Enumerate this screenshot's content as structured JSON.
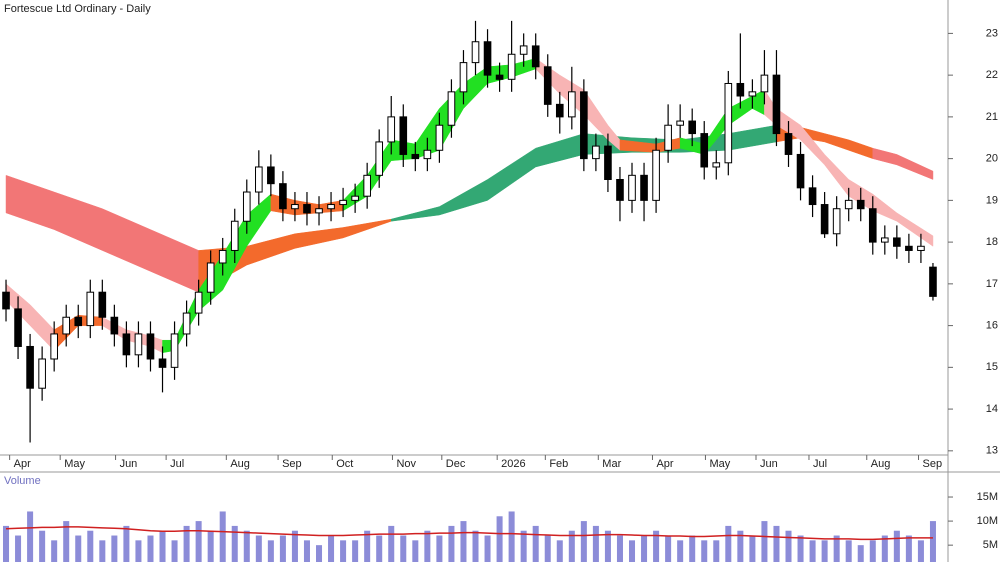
{
  "chart_data": [
    {
      "type": "candlestick",
      "title": "Fortescue Ltd Ordinary - Daily",
      "x": [
        0,
        1,
        2,
        3,
        4,
        5,
        6,
        7,
        8,
        9,
        10,
        11,
        12,
        13,
        14,
        15,
        16,
        17,
        18,
        19,
        20,
        21,
        22,
        23,
        24,
        25,
        26,
        27,
        28,
        29,
        30,
        31,
        32,
        33,
        34,
        35,
        36,
        37,
        38,
        39,
        40,
        41,
        42,
        43,
        44,
        45,
        46,
        47,
        48,
        49,
        50,
        51,
        52,
        53,
        54,
        55,
        56,
        57,
        58,
        59,
        60,
        61,
        62,
        63,
        64,
        65,
        66,
        67,
        68,
        69,
        70,
        71,
        72,
        73,
        74,
        75,
        76,
        77
      ],
      "open": [
        16.8,
        16.4,
        15.5,
        14.5,
        15.2,
        15.8,
        16.2,
        16.0,
        16.8,
        16.2,
        15.8,
        15.3,
        15.8,
        15.2,
        15.0,
        15.8,
        16.3,
        16.8,
        17.5,
        17.8,
        18.5,
        19.2,
        19.8,
        19.4,
        18.8,
        18.9,
        18.7,
        18.8,
        18.9,
        19.0,
        19.1,
        19.6,
        20.4,
        21.0,
        20.1,
        20.0,
        20.2,
        20.8,
        21.6,
        22.3,
        22.8,
        22.0,
        21.9,
        22.5,
        22.7,
        22.2,
        21.3,
        21.0,
        21.6,
        20.0,
        20.3,
        19.5,
        19.0,
        19.6,
        19.0,
        20.2,
        20.8,
        20.9,
        20.6,
        19.8,
        19.9,
        21.8,
        21.5,
        21.6,
        22.0,
        20.6,
        20.1,
        19.3,
        18.9,
        18.2,
        18.8,
        19.0,
        18.8,
        18.0,
        18.1,
        17.9,
        17.8,
        17.4
      ],
      "high": [
        17.1,
        16.7,
        15.8,
        15.5,
        16.1,
        16.5,
        16.5,
        17.1,
        17.1,
        16.5,
        16.1,
        16.1,
        16.1,
        15.5,
        16.1,
        16.6,
        17.1,
        17.8,
        18.1,
        18.8,
        19.5,
        20.2,
        20.1,
        19.7,
        19.2,
        19.2,
        19.1,
        19.2,
        19.3,
        19.4,
        19.9,
        20.7,
        21.5,
        21.3,
        20.4,
        20.5,
        21.1,
        21.9,
        22.6,
        23.3,
        23.1,
        22.3,
        23.3,
        23.0,
        23.0,
        22.5,
        21.6,
        22.2,
        21.9,
        20.6,
        20.6,
        19.8,
        19.9,
        19.9,
        20.5,
        21.3,
        21.3,
        21.2,
        20.9,
        20.2,
        22.1,
        23.0,
        21.9,
        22.6,
        22.6,
        20.9,
        20.4,
        19.6,
        19.2,
        19.1,
        19.3,
        19.3,
        19.1,
        18.4,
        18.4,
        18.2,
        18.2,
        17.5
      ],
      "low": [
        16.1,
        15.2,
        13.2,
        14.2,
        14.9,
        15.5,
        15.7,
        15.7,
        15.9,
        15.5,
        15.0,
        15.0,
        14.9,
        14.4,
        14.7,
        15.5,
        16.0,
        16.5,
        17.2,
        17.5,
        18.2,
        18.9,
        19.1,
        18.5,
        18.5,
        18.4,
        18.4,
        18.5,
        18.6,
        18.7,
        18.8,
        19.3,
        20.1,
        19.8,
        19.7,
        19.7,
        19.9,
        20.5,
        21.3,
        22.0,
        21.7,
        21.6,
        21.6,
        22.2,
        21.9,
        21.0,
        20.6,
        20.7,
        19.7,
        19.7,
        19.2,
        18.5,
        18.7,
        18.5,
        18.7,
        19.9,
        20.5,
        20.3,
        19.5,
        19.5,
        19.6,
        21.2,
        21.2,
        21.3,
        20.3,
        19.8,
        19.0,
        18.6,
        18.1,
        17.9,
        18.5,
        18.5,
        17.7,
        17.7,
        17.6,
        17.5,
        17.5,
        16.6
      ],
      "close": [
        16.4,
        15.5,
        14.5,
        15.2,
        15.8,
        16.2,
        16.0,
        16.8,
        16.2,
        15.8,
        15.3,
        15.8,
        15.2,
        15.0,
        15.8,
        16.3,
        16.8,
        17.5,
        17.8,
        18.5,
        19.2,
        19.8,
        19.4,
        18.8,
        18.9,
        18.7,
        18.8,
        18.9,
        19.0,
        19.1,
        19.6,
        20.4,
        21.0,
        20.1,
        20.0,
        20.2,
        20.8,
        21.6,
        22.3,
        22.8,
        22.0,
        21.9,
        22.5,
        22.7,
        22.2,
        21.3,
        21.0,
        21.6,
        20.0,
        20.3,
        19.5,
        19.0,
        19.6,
        19.0,
        20.2,
        20.8,
        20.9,
        20.6,
        19.8,
        19.9,
        21.8,
        21.5,
        21.6,
        22.0,
        20.6,
        20.1,
        19.3,
        18.9,
        18.2,
        18.8,
        19.0,
        18.8,
        18.0,
        18.1,
        17.9,
        17.8,
        17.9,
        16.7
      ],
      "up_color": "#ffffff",
      "down_color": "#000000",
      "bands": [
        {
          "color": "#f27676",
          "x": [
            0,
            4,
            8,
            12,
            16
          ],
          "upper": [
            19.6,
            19.2,
            18.8,
            18.3,
            17.8
          ],
          "lower": [
            18.7,
            18.3,
            17.8,
            17.3,
            16.8
          ]
        },
        {
          "color": "#f36a2c",
          "x": [
            16,
            20,
            24,
            28,
            32
          ],
          "upper": [
            17.8,
            17.9,
            18.2,
            18.35,
            18.55
          ],
          "lower": [
            16.8,
            17.45,
            17.85,
            18.1,
            18.5
          ]
        },
        {
          "color": "#33a874",
          "x": [
            32,
            36,
            40,
            44,
            48,
            52,
            56,
            60,
            64
          ],
          "upper": [
            18.55,
            18.85,
            19.5,
            20.25,
            20.6,
            20.5,
            20.45,
            20.6,
            20.8
          ],
          "lower": [
            18.5,
            18.65,
            19.0,
            19.8,
            20.1,
            20.15,
            20.15,
            20.2,
            20.4
          ]
        },
        {
          "color": "#f36a2c",
          "x": [
            64,
            66,
            68,
            70,
            72
          ],
          "upper": [
            20.8,
            20.75,
            20.6,
            20.45,
            20.25
          ],
          "lower": [
            20.4,
            20.5,
            20.4,
            20.2,
            20.0
          ]
        },
        {
          "color": "#f27676",
          "x": [
            72,
            74,
            77
          ],
          "upper": [
            20.25,
            20.1,
            19.7
          ],
          "lower": [
            20.0,
            19.85,
            19.5
          ]
        },
        {
          "color": "#f8b4b4",
          "x": [
            0,
            2,
            4
          ],
          "upper": [
            17.0,
            16.5,
            15.9
          ],
          "lower": [
            16.6,
            16.0,
            15.4
          ]
        },
        {
          "color": "#f36a2c",
          "x": [
            4,
            6,
            8
          ],
          "upper": [
            15.9,
            16.25,
            16.2
          ],
          "lower": [
            15.4,
            16.0,
            16.0
          ]
        },
        {
          "color": "#f8b4b4",
          "x": [
            8,
            10,
            12,
            13
          ],
          "upper": [
            16.2,
            15.9,
            15.75,
            15.65
          ],
          "lower": [
            16.0,
            15.65,
            15.5,
            15.35
          ]
        },
        {
          "color": "#22e022",
          "x": [
            13,
            14,
            16,
            18,
            20,
            22
          ],
          "upper": [
            15.65,
            15.65,
            16.85,
            17.7,
            18.65,
            19.15
          ],
          "lower": [
            15.35,
            15.4,
            16.35,
            16.85,
            17.9,
            18.75
          ]
        },
        {
          "color": "#f36a2c",
          "x": [
            22,
            24,
            26,
            28
          ],
          "upper": [
            19.15,
            19.0,
            18.9,
            19.0
          ],
          "lower": [
            18.75,
            18.65,
            18.7,
            18.75
          ]
        },
        {
          "color": "#22e022",
          "x": [
            28,
            30,
            32,
            34,
            36,
            38,
            40,
            42,
            44
          ],
          "upper": [
            19.0,
            19.6,
            20.45,
            20.35,
            21.2,
            21.8,
            22.2,
            22.25,
            22.4
          ],
          "lower": [
            18.75,
            19.1,
            19.95,
            20.0,
            20.2,
            21.2,
            21.8,
            21.95,
            22.15
          ]
        },
        {
          "color": "#f8b4b4",
          "x": [
            44,
            46,
            48,
            50,
            51
          ],
          "upper": [
            22.4,
            22.0,
            21.65,
            20.8,
            20.45
          ],
          "lower": [
            22.15,
            21.55,
            21.05,
            20.45,
            20.2
          ]
        },
        {
          "color": "#f36a2c",
          "x": [
            51,
            54,
            56
          ],
          "upper": [
            20.45,
            20.35,
            20.5
          ],
          "lower": [
            20.2,
            20.15,
            20.25
          ]
        },
        {
          "color": "#22e022",
          "x": [
            56,
            58,
            60,
            62,
            63
          ],
          "upper": [
            20.5,
            20.35,
            21.2,
            21.5,
            21.65
          ],
          "lower": [
            20.25,
            20.1,
            20.8,
            21.2,
            21.05
          ]
        },
        {
          "color": "#f8b4b4",
          "x": [
            63,
            64,
            66,
            68,
            70,
            72,
            74,
            77
          ],
          "upper": [
            21.65,
            21.2,
            20.8,
            20.1,
            19.5,
            19.15,
            18.7,
            18.15
          ],
          "lower": [
            21.05,
            20.8,
            20.45,
            19.85,
            19.1,
            18.75,
            18.5,
            17.9
          ]
        }
      ],
      "xlim": [
        -0.5,
        78
      ],
      "xticks": [
        {
          "value": 0.3,
          "label": "Apr"
        },
        {
          "value": 4.5,
          "label": "May"
        },
        {
          "value": 9.1,
          "label": "Jun"
        },
        {
          "value": 13.3,
          "label": "Jul"
        },
        {
          "value": 18.3,
          "label": "Aug"
        },
        {
          "value": 22.6,
          "label": "Sep"
        },
        {
          "value": 27.1,
          "label": "Oct"
        },
        {
          "value": 32.1,
          "label": "Nov"
        },
        {
          "value": 36.2,
          "label": "Dec"
        },
        {
          "value": 40.8,
          "label": "2026"
        },
        {
          "value": 44.8,
          "label": "Feb"
        },
        {
          "value": 49.2,
          "label": "Mar"
        },
        {
          "value": 53.7,
          "label": "Apr"
        },
        {
          "value": 58.1,
          "label": "May"
        },
        {
          "value": 62.3,
          "label": "Jun"
        },
        {
          "value": 66.7,
          "label": "Jul"
        },
        {
          "value": 71.5,
          "label": "Aug"
        },
        {
          "value": 75.8,
          "label": "Sep"
        }
      ],
      "ylim": [
        12.9,
        23.8
      ],
      "yticks": [
        13,
        14,
        15,
        16,
        17,
        18,
        19,
        20,
        21,
        22,
        23
      ]
    },
    {
      "type": "bar",
      "title": "Volume",
      "color": "#8c8cd8",
      "values": [
        9,
        7,
        12,
        8,
        6,
        10,
        7,
        8,
        6,
        7,
        9,
        6,
        7,
        8,
        6,
        9,
        10,
        8,
        12,
        9,
        8,
        7,
        6,
        7,
        8,
        6,
        5,
        7,
        6,
        6,
        8,
        7,
        9,
        7,
        6,
        8,
        7,
        9,
        10,
        8,
        7,
        11,
        12,
        8,
        9,
        7,
        6,
        8,
        10,
        9,
        8,
        7,
        6,
        7,
        8,
        7,
        6,
        7,
        6,
        6,
        9,
        8,
        7,
        10,
        9,
        8,
        7,
        6,
        6,
        7,
        6,
        5,
        6,
        7,
        8,
        7,
        6,
        10
      ],
      "average": {
        "color": "#d02020",
        "values": [
          8.4,
          8.5,
          8.6,
          8.7,
          8.7,
          8.8,
          8.8,
          8.7,
          8.6,
          8.5,
          8.4,
          8.2,
          8.0,
          7.9,
          7.9,
          8.0,
          8.0,
          7.9,
          7.8,
          7.7,
          7.6,
          7.5,
          7.4,
          7.3,
          7.2,
          7.1,
          7.0,
          7.0,
          7.0,
          7.1,
          7.2,
          7.3,
          7.3,
          7.3,
          7.4,
          7.4,
          7.5,
          7.5,
          7.6,
          7.6,
          7.5,
          7.4,
          7.4,
          7.3,
          7.2,
          7.1,
          7.0,
          7.0,
          7.0,
          7.1,
          7.2,
          7.2,
          7.1,
          7.0,
          7.0,
          6.9,
          6.9,
          6.8,
          6.8,
          6.9,
          7.0,
          7.0,
          6.9,
          6.8,
          6.7,
          6.6,
          6.5,
          6.4,
          6.3,
          6.3,
          6.3,
          6.2,
          6.2,
          6.3,
          6.4,
          6.5,
          6.5,
          6.5
        ]
      },
      "ylim": [
        1.5,
        20.2
      ],
      "yticks": [
        {
          "value": 5,
          "label": "5M"
        },
        {
          "value": 10,
          "label": "10M"
        },
        {
          "value": 15,
          "label": "15M"
        }
      ]
    }
  ]
}
